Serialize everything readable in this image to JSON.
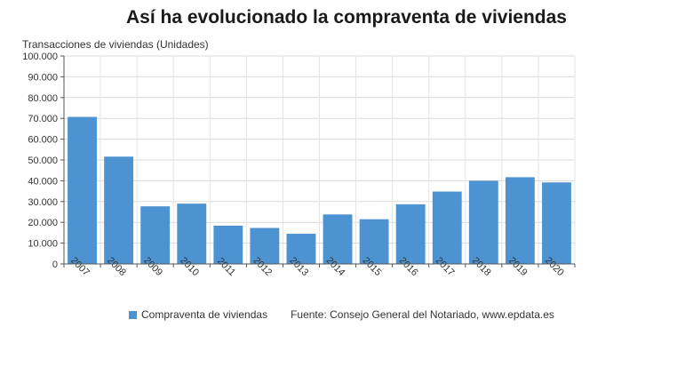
{
  "chart_data": {
    "type": "bar",
    "title": "Así ha evolucionado la compraventa de viviendas",
    "ylabel": "Transacciones de viviendas (Unidades)",
    "xlabel": "",
    "categories": [
      "2007",
      "2008",
      "2009",
      "2010",
      "2011",
      "2012",
      "2013",
      "2014",
      "2015",
      "2016",
      "2017",
      "2018",
      "2019",
      "2020"
    ],
    "series": [
      {
        "name": "Compraventa de viviendas",
        "values": [
          70700,
          51600,
          27700,
          29000,
          18400,
          17300,
          14500,
          23800,
          21500,
          28700,
          34800,
          40000,
          41700,
          39200
        ]
      }
    ],
    "ylim": [
      0,
      100000
    ],
    "yticks": [
      0,
      10000,
      20000,
      30000,
      40000,
      50000,
      60000,
      70000,
      80000,
      90000,
      100000
    ],
    "ytick_labels": [
      "0",
      "10.000",
      "20.000",
      "30.000",
      "40.000",
      "50.000",
      "60.000",
      "70.000",
      "80.000",
      "90.000",
      "100.000"
    ],
    "grid": true,
    "legend_position": "bottom",
    "bar_color": "#4d93d2",
    "source": "Fuente: Consejo General del Notariado, www.epdata.es"
  }
}
